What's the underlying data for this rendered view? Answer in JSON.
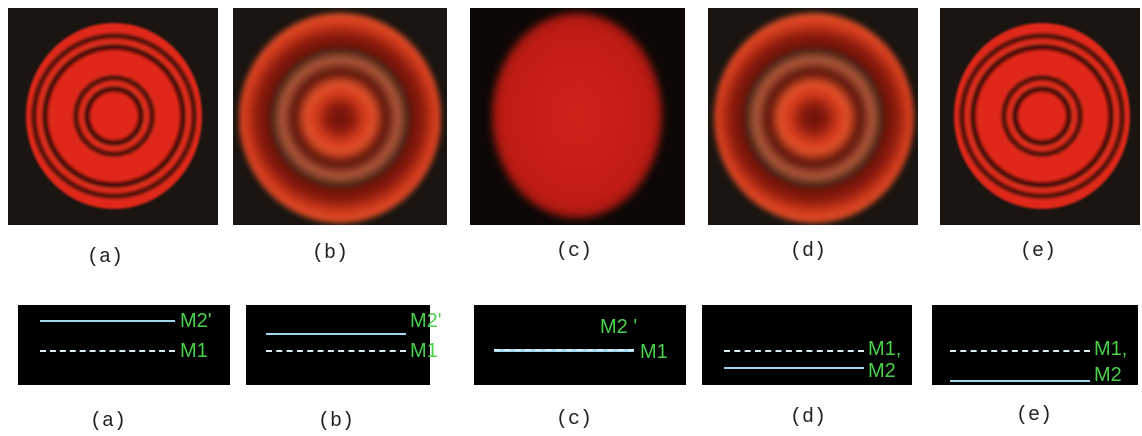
{
  "top": {
    "panels": [
      {
        "label": "(a)"
      },
      {
        "label": "(b)"
      },
      {
        "label": "(c)"
      },
      {
        "label": "(d)"
      },
      {
        "label": "(e)"
      }
    ]
  },
  "bottom": {
    "panels": [
      {
        "label": "(a)",
        "upper": "M2'",
        "lower": "M1"
      },
      {
        "label": "(b)",
        "upper": "M2'",
        "lower": "M1"
      },
      {
        "label": "(c)",
        "upper": "M2 '",
        "lower": "M1"
      },
      {
        "label": "(d)",
        "upper": "M1,",
        "lower": "M2"
      },
      {
        "label": "(e)",
        "upper": "M1,",
        "lower": "M2"
      }
    ]
  }
}
